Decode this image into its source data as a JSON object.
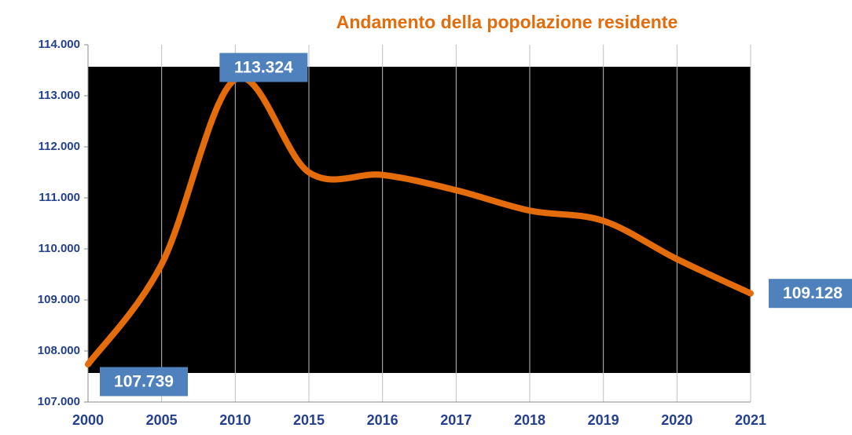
{
  "chart_data": {
    "type": "line",
    "title": "Andamento della popolazione residente",
    "categories": [
      "2000",
      "2005",
      "2010",
      "2015",
      "2016",
      "2017",
      "2018",
      "2019",
      "2020",
      "2021"
    ],
    "series": [
      {
        "name": "Popolazione residente",
        "color": "#e46c0a",
        "values": [
          107739,
          109700,
          113324,
          111500,
          111450,
          111150,
          110750,
          110550,
          109800,
          109128
        ]
      }
    ],
    "value_labels": [
      "107.739",
      null,
      "113.324",
      null,
      null,
      null,
      null,
      null,
      null,
      "109.128"
    ],
    "ylim": [
      107000,
      114000
    ],
    "yticks": [
      {
        "value": 107000,
        "label": "107.000"
      },
      {
        "value": 108000,
        "label": "108.000"
      },
      {
        "value": 109000,
        "label": "109.000"
      },
      {
        "value": 110000,
        "label": "110.000"
      },
      {
        "value": 111000,
        "label": "111.000"
      },
      {
        "value": 112000,
        "label": "112.000"
      },
      {
        "value": 113000,
        "label": "113.000"
      },
      {
        "value": 114000,
        "label": "114.000"
      }
    ],
    "grid": true
  }
}
